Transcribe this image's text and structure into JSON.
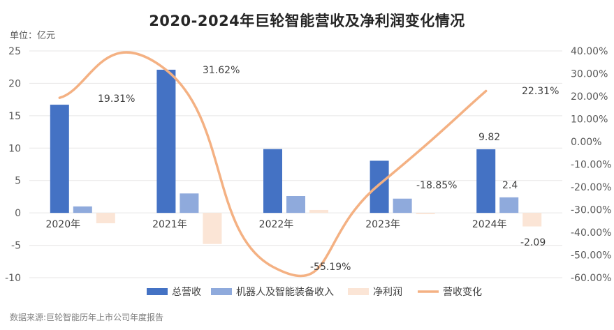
{
  "title": "2020-2024年巨轮智能营收及净利润变化情况",
  "unit_label": "单位：亿元",
  "source": "数据来源:巨轮智能历年上市公司年度报告",
  "colors": {
    "total_revenue": "#4472C4",
    "robot_revenue": "#8FAADC",
    "net_profit": "#FBE5D6",
    "revenue_change": "#F4B183",
    "grid": "#E7E6E6"
  },
  "chart_data": {
    "type": "bar",
    "categories": [
      "2020年",
      "2021年",
      "2022年",
      "2023年",
      "2024年"
    ],
    "series": [
      {
        "name": "总营收",
        "type": "bar",
        "axis": "left",
        "values": [
          16.7,
          22.1,
          9.85,
          8.05,
          9.82
        ]
      },
      {
        "name": "机器人及智能装备收入",
        "type": "bar",
        "axis": "left",
        "values": [
          1.0,
          3.0,
          2.6,
          2.2,
          2.4
        ]
      },
      {
        "name": "净利润",
        "type": "bar",
        "axis": "left",
        "values": [
          -1.6,
          -4.8,
          0.45,
          -0.2,
          -2.09
        ]
      },
      {
        "name": "营收变化",
        "type": "line",
        "axis": "right",
        "values": [
          19.31,
          31.62,
          -55.19,
          -18.85,
          22.31
        ]
      }
    ],
    "data_labels": [
      {
        "series": "营收变化",
        "index": 0,
        "text": "19.31%"
      },
      {
        "series": "营收变化",
        "index": 1,
        "text": "31.62%"
      },
      {
        "series": "营收变化",
        "index": 2,
        "text": "-55.19%"
      },
      {
        "series": "营收变化",
        "index": 3,
        "text": "-18.85%"
      },
      {
        "series": "营收变化",
        "index": 4,
        "text": "22.31%"
      },
      {
        "series": "总营收",
        "index": 4,
        "text": "9.82"
      },
      {
        "series": "机器人及智能装备收入",
        "index": 4,
        "text": "2.4"
      },
      {
        "series": "净利润",
        "index": 4,
        "text": "-2.09"
      }
    ],
    "y_left": {
      "min": -10,
      "max": 25,
      "step": 5,
      "ticks": [
        "-10",
        "-5",
        "0",
        "5",
        "10",
        "15",
        "20",
        "25"
      ]
    },
    "y_right": {
      "min": -60,
      "max": 40,
      "step": 10,
      "ticks": [
        "-60.00%",
        "-50.00%",
        "-40.00%",
        "-30.00%",
        "-20.00%",
        "-10.00%",
        "0.00%",
        "10.00%",
        "20.00%",
        "30.00%",
        "40.00%"
      ]
    },
    "grid": true,
    "legend_position": "bottom"
  }
}
